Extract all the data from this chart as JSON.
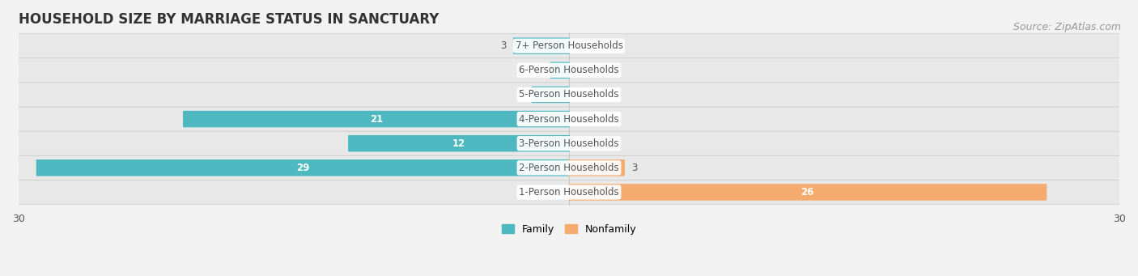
{
  "title": "HOUSEHOLD SIZE BY MARRIAGE STATUS IN SANCTUARY",
  "source": "Source: ZipAtlas.com",
  "categories": [
    "7+ Person Households",
    "6-Person Households",
    "5-Person Households",
    "4-Person Households",
    "3-Person Households",
    "2-Person Households",
    "1-Person Households"
  ],
  "family": [
    3,
    1,
    2,
    21,
    12,
    29,
    0
  ],
  "nonfamily": [
    0,
    0,
    0,
    0,
    0,
    3,
    26
  ],
  "family_color": "#4db8c0",
  "nonfamily_color": "#f5ab6e",
  "xlim": [
    -30,
    30
  ],
  "xticks": [
    -30,
    30
  ],
  "background_color": "#f2f2f2",
  "row_color": "#e8e8e8",
  "bar_height": 0.6,
  "label_color": "#555555",
  "title_fontsize": 12,
  "source_fontsize": 9,
  "tick_fontsize": 9,
  "legend_fontsize": 9,
  "value_fontsize": 8.5,
  "category_fontsize": 8.5
}
